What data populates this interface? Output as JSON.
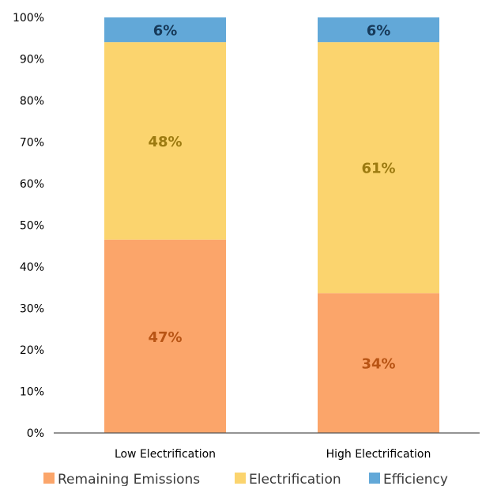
{
  "chart_data": {
    "type": "bar",
    "stacked": true,
    "categories": [
      "Low Electrification",
      "High Electrification"
    ],
    "series": [
      {
        "name": "Remaining Emissions",
        "values": [
          47,
          34
        ],
        "labels": [
          "47%",
          "34%"
        ],
        "color": "#FBA56A",
        "label_color": "#B85414"
      },
      {
        "name": "Electrification",
        "values": [
          48,
          61
        ],
        "labels": [
          "48%",
          "61%"
        ],
        "color": "#FBD46E",
        "label_color": "#9C7A10"
      },
      {
        "name": "Efficiency",
        "values": [
          6,
          6
        ],
        "labels": [
          "6%",
          "6%"
        ],
        "color": "#62A8D8",
        "label_color": "#173A5A"
      }
    ],
    "yticks": [
      "0%",
      "10%",
      "20%",
      "30%",
      "40%",
      "50%",
      "60%",
      "70%",
      "80%",
      "90%",
      "100%"
    ],
    "ylim": [
      0,
      100
    ],
    "grid": false,
    "legend_position": "bottom"
  }
}
